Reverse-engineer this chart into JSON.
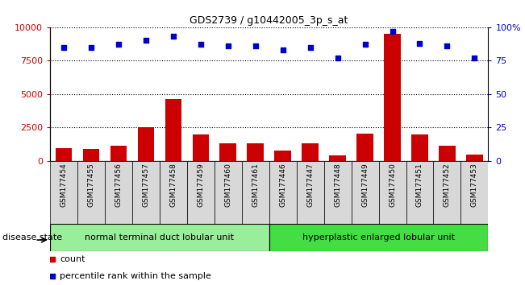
{
  "title": "GDS2739 / g10442005_3p_s_at",
  "samples": [
    "GSM177454",
    "GSM177455",
    "GSM177456",
    "GSM177457",
    "GSM177458",
    "GSM177459",
    "GSM177460",
    "GSM177461",
    "GSM177446",
    "GSM177447",
    "GSM177448",
    "GSM177449",
    "GSM177450",
    "GSM177451",
    "GSM177452",
    "GSM177453"
  ],
  "counts": [
    950,
    900,
    1150,
    2500,
    4600,
    2000,
    1350,
    1300,
    800,
    1350,
    450,
    2050,
    9500,
    2000,
    1150,
    500
  ],
  "percentiles": [
    85,
    85,
    87,
    90,
    93,
    87,
    86,
    86,
    83,
    85,
    77,
    87,
    97,
    88,
    86,
    77
  ],
  "group1_label": "normal terminal duct lobular unit",
  "group1_count": 8,
  "group2_label": "hyperplastic enlarged lobular unit",
  "group2_count": 8,
  "disease_state_label": "disease state",
  "bar_color": "#cc0000",
  "dot_color": "#0000cc",
  "group1_bg": "#99ee99",
  "group2_bg": "#44dd44",
  "sample_box_bg": "#d8d8d8",
  "ylim_left": [
    0,
    10000
  ],
  "ylim_right": [
    0,
    100
  ],
  "yticks_left": [
    0,
    2500,
    5000,
    7500,
    10000
  ],
  "yticks_right": [
    0,
    25,
    50,
    75,
    100
  ],
  "ytick_labels_left": [
    "0",
    "2500",
    "5000",
    "7500",
    "10000"
  ],
  "ytick_labels_right": [
    "0",
    "25",
    "50",
    "75",
    "100%"
  ],
  "legend_count_label": "count",
  "legend_percentile_label": "percentile rank within the sample",
  "bar_width": 0.6,
  "figsize": [
    6.51,
    3.54
  ],
  "dpi": 100
}
